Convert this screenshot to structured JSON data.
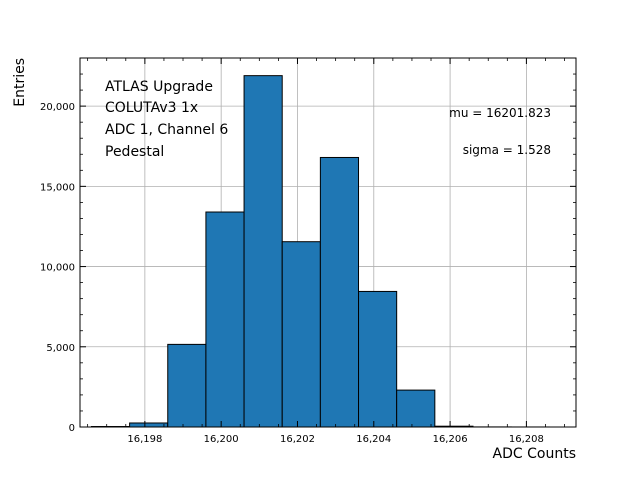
{
  "chart_data": {
    "type": "bar",
    "title": "",
    "xlabel": "ADC Counts",
    "ylabel": "Entries",
    "bar_color": "#1f77b4",
    "edge_color": "#000000",
    "grid": true,
    "xlim": [
      16196.3,
      16209.3
    ],
    "ylim": [
      0,
      23000
    ],
    "bins": [
      {
        "x0": 16196.6,
        "x1": 16197.6,
        "value": 30
      },
      {
        "x0": 16197.6,
        "x1": 16198.6,
        "value": 250
      },
      {
        "x0": 16198.6,
        "x1": 16199.6,
        "value": 5150
      },
      {
        "x0": 16199.6,
        "x1": 16200.6,
        "value": 13400
      },
      {
        "x0": 16200.6,
        "x1": 16201.6,
        "value": 21900
      },
      {
        "x0": 16201.6,
        "x1": 16202.6,
        "value": 11550
      },
      {
        "x0": 16202.6,
        "x1": 16203.6,
        "value": 16800
      },
      {
        "x0": 16203.6,
        "x1": 16204.6,
        "value": 8450
      },
      {
        "x0": 16204.6,
        "x1": 16205.6,
        "value": 2300
      },
      {
        "x0": 16205.6,
        "x1": 16206.6,
        "value": 50
      },
      {
        "x0": 16206.6,
        "x1": 16207.6,
        "value": 5
      },
      {
        "x0": 16207.6,
        "x1": 16208.6,
        "value": 2
      }
    ],
    "x_ticks": [
      {
        "value": 16198,
        "label": "16,198"
      },
      {
        "value": 16200,
        "label": "16,200"
      },
      {
        "value": 16202,
        "label": "16,202"
      },
      {
        "value": 16204,
        "label": "16,204"
      },
      {
        "value": 16206,
        "label": "16,206"
      },
      {
        "value": 16208,
        "label": "16,208"
      }
    ],
    "y_ticks": [
      {
        "value": 0,
        "label": "0"
      },
      {
        "value": 5000,
        "label": "5,000"
      },
      {
        "value": 10000,
        "label": "10,000"
      },
      {
        "value": 15000,
        "label": "15,000"
      },
      {
        "value": 20000,
        "label": "20,000"
      }
    ],
    "x_minor_step": 0.5,
    "y_minor_step": 1000,
    "annotation_lines": [
      "ATLAS Upgrade",
      "COLUTAv3 1x",
      "ADC 1, Channel 6",
      "Pedestal"
    ],
    "stats": {
      "mu": "mu = 16201.823",
      "sigma": "sigma = 1.528"
    }
  }
}
